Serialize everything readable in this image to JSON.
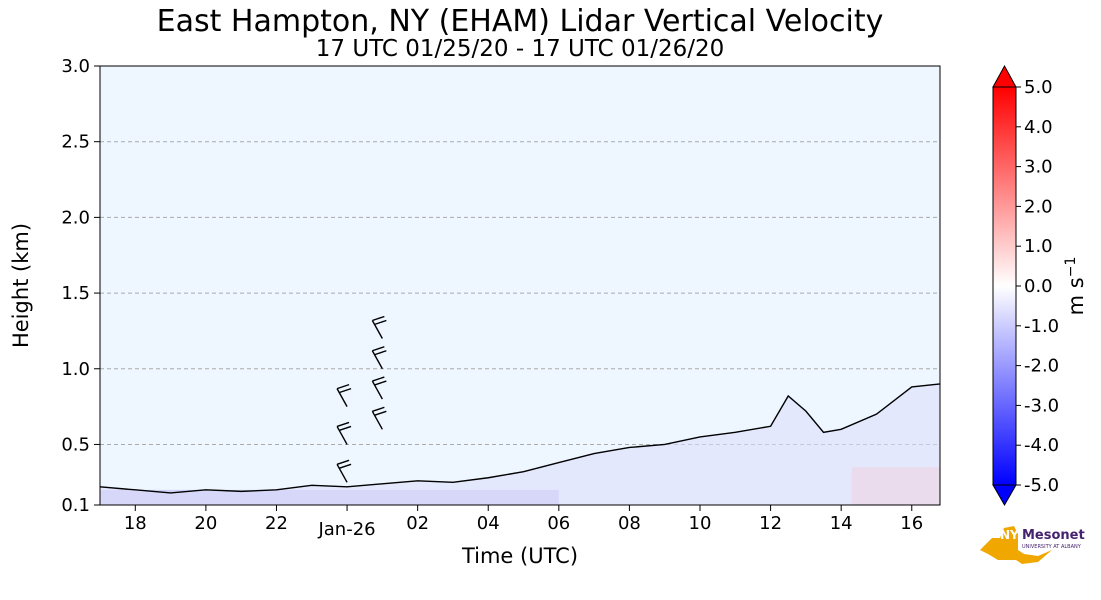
{
  "chart_data": {
    "type": "heatmap",
    "title": "East Hampton, NY (EHAM) Lidar Vertical Velocity",
    "subtitle": "17 UTC 01/25/20 - 17 UTC 01/26/20",
    "xlabel": "Time (UTC)",
    "ylabel": "Height (km)",
    "x_ticks": [
      "18",
      "20",
      "22",
      "Jan-26",
      "02",
      "04",
      "06",
      "08",
      "10",
      "12",
      "14",
      "16"
    ],
    "x_tick_hours": [
      18,
      20,
      22,
      24,
      26,
      28,
      30,
      32,
      34,
      36,
      38,
      40
    ],
    "xlim_hours": [
      17,
      40.8
    ],
    "y_ticks": [
      "0.1",
      "0.5",
      "1.0",
      "1.5",
      "2.0",
      "2.5",
      "3.0"
    ],
    "y_tick_values": [
      0.1,
      0.5,
      1.0,
      1.5,
      2.0,
      2.5,
      3.0
    ],
    "ylim": [
      0.1,
      3.0
    ],
    "grid": "horizontal dashed",
    "colorbar": {
      "label": "m s",
      "label_sup": "−1",
      "ticks": [
        "5.0",
        "4.0",
        "3.0",
        "2.0",
        "1.0",
        "0.0",
        "-1.0",
        "-2.0",
        "-3.0",
        "-4.0",
        "-5.0"
      ],
      "tick_values": [
        5,
        4,
        3,
        2,
        1,
        0,
        -1,
        -2,
        -3,
        -4,
        -5
      ],
      "range": [
        -5,
        5
      ],
      "colors": {
        "max": "#ff0000",
        "zero": "#ffffff",
        "min": "#0000ff"
      }
    },
    "background_color": "#eef6ff",
    "data_top_km": [
      [
        17.0,
        0.22
      ],
      [
        18.0,
        0.2
      ],
      [
        19.0,
        0.18
      ],
      [
        20.0,
        0.2
      ],
      [
        21.0,
        0.19
      ],
      [
        22.0,
        0.2
      ],
      [
        23.0,
        0.23
      ],
      [
        24.0,
        0.22
      ],
      [
        25.0,
        0.24
      ],
      [
        26.0,
        0.26
      ],
      [
        27.0,
        0.25
      ],
      [
        28.0,
        0.28
      ],
      [
        29.0,
        0.32
      ],
      [
        30.0,
        0.38
      ],
      [
        31.0,
        0.44
      ],
      [
        32.0,
        0.48
      ],
      [
        33.0,
        0.5
      ],
      [
        34.0,
        0.55
      ],
      [
        35.0,
        0.58
      ],
      [
        36.0,
        0.62
      ],
      [
        36.5,
        0.82
      ],
      [
        37.0,
        0.72
      ],
      [
        37.5,
        0.58
      ],
      [
        38.0,
        0.6
      ],
      [
        39.0,
        0.7
      ],
      [
        40.0,
        0.88
      ],
      [
        40.8,
        0.9
      ]
    ],
    "tendency_regions": [
      {
        "label": "negative",
        "x": [
          17,
          30
        ],
        "y": [
          0.1,
          0.2
        ],
        "value": -0.8
      },
      {
        "label": "positive",
        "x": [
          38.3,
          40.8
        ],
        "y": [
          0.1,
          0.35
        ],
        "value": 1.0
      }
    ],
    "wind_barbs": [
      {
        "x": 25.0,
        "y": [
          0.6,
          0.8,
          1.0,
          1.2
        ]
      },
      {
        "x": 24.0,
        "y": [
          0.25,
          0.5,
          0.75
        ]
      }
    ],
    "logo": {
      "nys": "NYS",
      "brand": "Mesonet",
      "sub": "UNIVERSITY AT ALBANY"
    }
  }
}
